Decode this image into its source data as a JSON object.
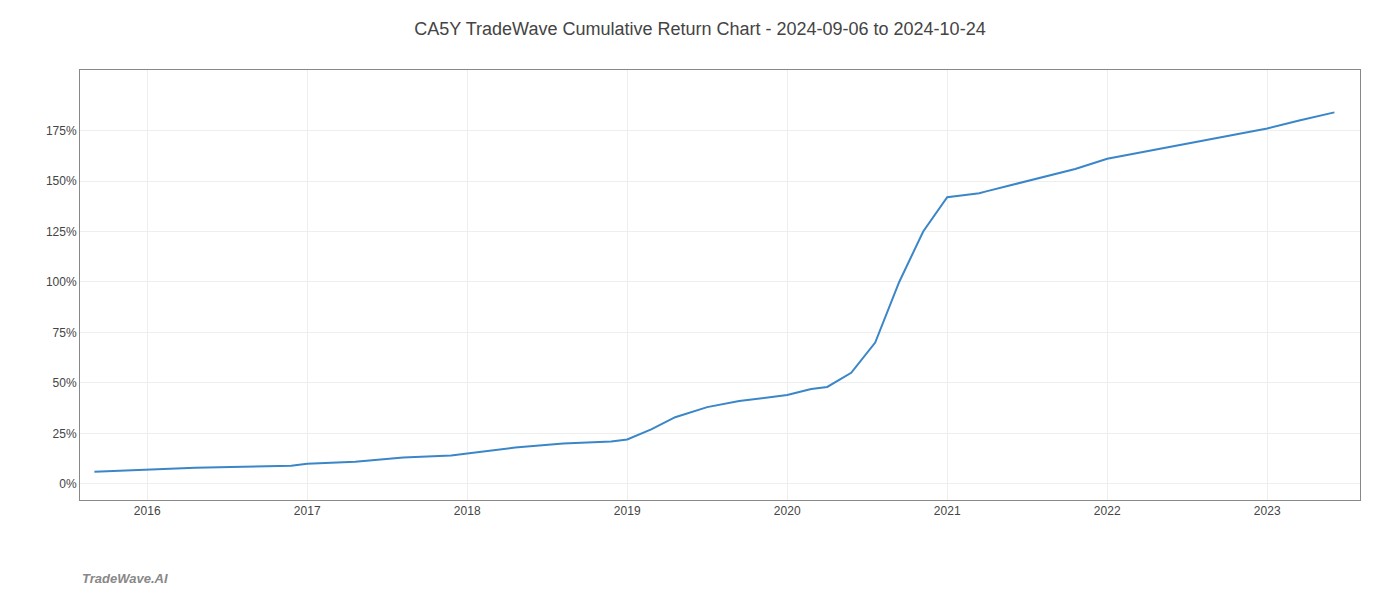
{
  "chart_data": {
    "type": "line",
    "title": "CA5Y TradeWave Cumulative Return Chart - 2024-09-06 to 2024-10-24",
    "annotations": [
      "TradeWave.AI"
    ],
    "color": "#3a86c8",
    "x": [
      2015.67,
      2016.0,
      2016.3,
      2016.6,
      2016.9,
      2017.0,
      2017.3,
      2017.6,
      2017.9,
      2018.0,
      2018.3,
      2018.6,
      2018.9,
      2019.0,
      2019.15,
      2019.3,
      2019.5,
      2019.7,
      2019.9,
      2020.0,
      2020.05,
      2020.1,
      2020.15,
      2020.25,
      2020.4,
      2020.55,
      2020.7,
      2020.85,
      2021.0,
      2021.1,
      2021.2,
      2021.25,
      2021.4,
      2021.6,
      2021.8,
      2022.0,
      2022.2,
      2022.4,
      2022.6,
      2022.8,
      2023.0,
      2023.2,
      2023.42
    ],
    "values": [
      6,
      7,
      8,
      8.5,
      9,
      10,
      11,
      13,
      14,
      15,
      18,
      20,
      21,
      22,
      27,
      33,
      38,
      41,
      43,
      44,
      45,
      46,
      47,
      48,
      55,
      70,
      100,
      125,
      142,
      143,
      144,
      145,
      148,
      152,
      156,
      161,
      164,
      167,
      170,
      173,
      176,
      180,
      184
    ],
    "xlim": [
      2015.58,
      2023.58
    ],
    "xticks": [
      2016,
      2017,
      2018,
      2019,
      2020,
      2021,
      2022,
      2023
    ],
    "ylim": [
      -8,
      205
    ],
    "yticks": [
      {
        "value": 0,
        "label": "0%"
      },
      {
        "value": 25,
        "label": "25%"
      },
      {
        "value": 50,
        "label": "50%"
      },
      {
        "value": 75,
        "label": "75%"
      },
      {
        "value": 100,
        "label": "100%"
      },
      {
        "value": 125,
        "label": "125%"
      },
      {
        "value": 150,
        "label": "150%"
      },
      {
        "value": 175,
        "label": "175%"
      }
    ],
    "grid": true
  }
}
